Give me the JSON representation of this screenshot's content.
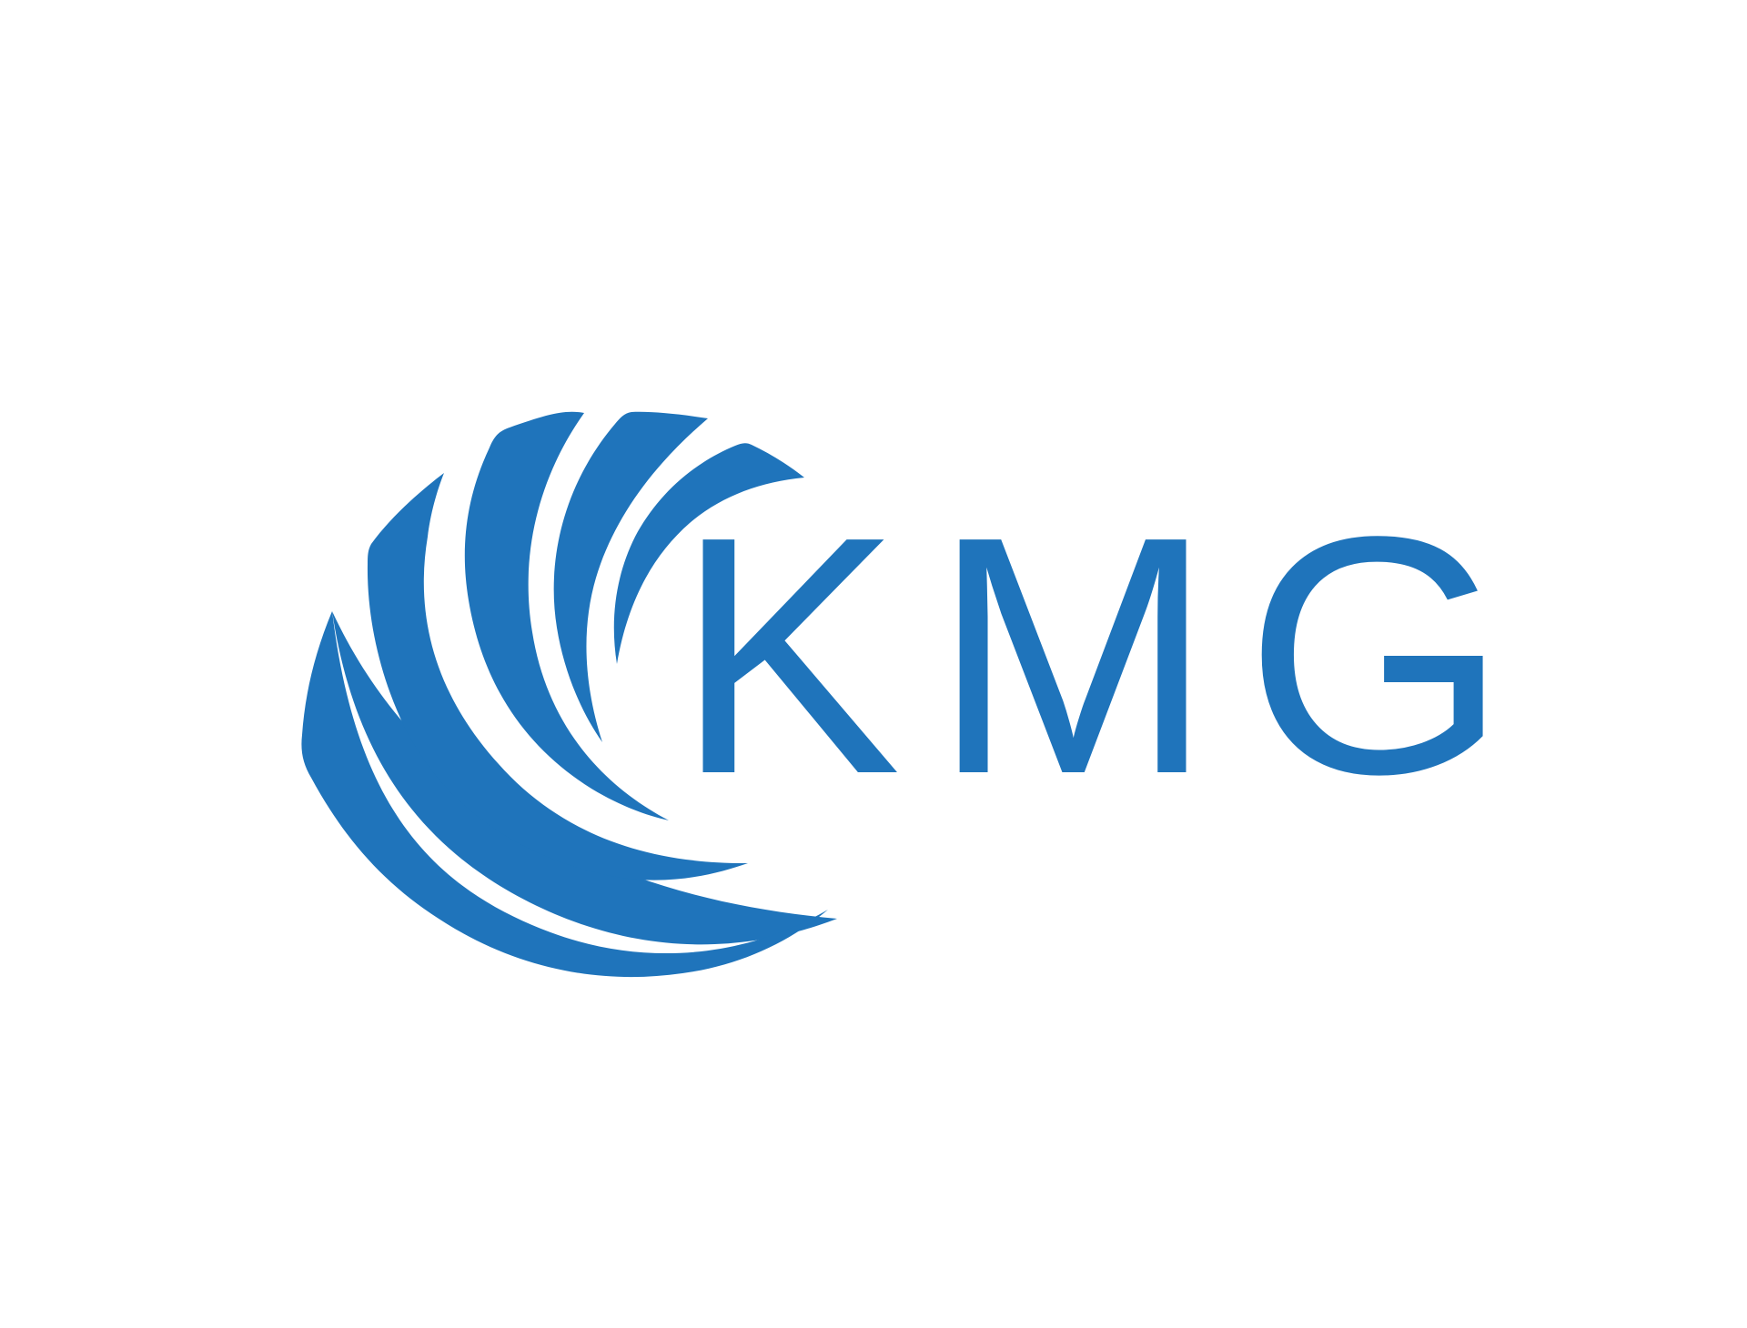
{
  "logo": {
    "wordmark": "KMG",
    "brand_color": "#1f74bb",
    "background_color": "#ffffff",
    "emblem_icon": "swoosh-globe-icon"
  }
}
